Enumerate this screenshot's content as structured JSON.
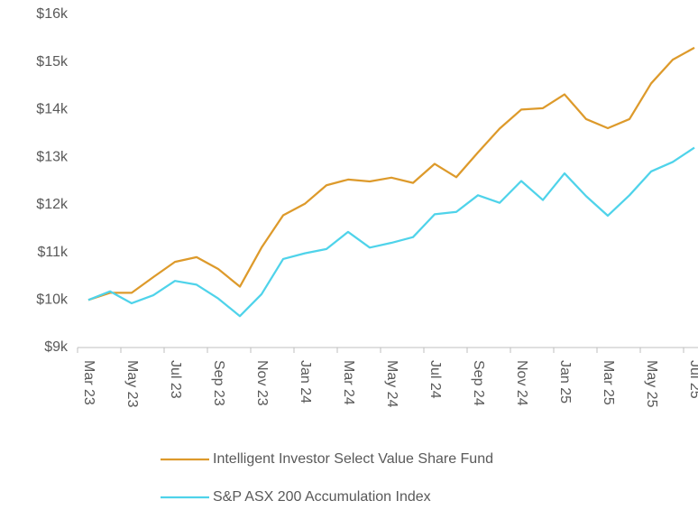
{
  "chart_data": {
    "type": "line",
    "categories": [
      "Mar 23",
      null,
      "May 23",
      null,
      "Jul 23",
      null,
      "Sep 23",
      null,
      "Nov 23",
      null,
      "Jan 24",
      null,
      "Mar 24",
      null,
      "May 24",
      null,
      "Jul 24",
      null,
      "Sep 24",
      null,
      "Nov 24",
      null,
      "Jan 25",
      null,
      "Mar 25",
      null,
      "May 25",
      null,
      "Jul 25"
    ],
    "series": [
      {
        "name": "Intelligent Investor Select Value Share Fund",
        "color": "#dd9a2b",
        "values": [
          10.0,
          10.15,
          10.15,
          10.48,
          10.8,
          10.9,
          10.65,
          10.28,
          11.1,
          11.78,
          12.02,
          12.41,
          12.53,
          12.49,
          12.57,
          12.46,
          12.86,
          12.58,
          13.1,
          13.6,
          14.0,
          14.03,
          14.32,
          13.8,
          13.61,
          13.8,
          14.55,
          15.05,
          15.3
        ]
      },
      {
        "name": "S&P ASX 200 Accumulation Index",
        "color": "#4fd3ea",
        "values": [
          10.0,
          10.18,
          9.93,
          10.1,
          10.4,
          10.32,
          10.03,
          9.66,
          10.12,
          10.86,
          10.98,
          11.07,
          11.43,
          11.1,
          11.2,
          11.32,
          11.8,
          11.85,
          12.2,
          12.04,
          12.5,
          12.1,
          12.66,
          12.18,
          11.77,
          12.2,
          12.7,
          12.9,
          13.2
        ]
      }
    ],
    "ylim": [
      9,
      16
    ],
    "yticks": [
      {
        "value": 9,
        "label": "$9k"
      },
      {
        "value": 10,
        "label": "$10k"
      },
      {
        "value": 11,
        "label": "$11k"
      },
      {
        "value": 12,
        "label": "$12k"
      },
      {
        "value": 13,
        "label": "$13k"
      },
      {
        "value": 14,
        "label": "$14k"
      },
      {
        "value": 15,
        "label": "$15k"
      },
      {
        "value": 16,
        "label": "$16k"
      }
    ],
    "grid": false,
    "legend": "bottom"
  }
}
